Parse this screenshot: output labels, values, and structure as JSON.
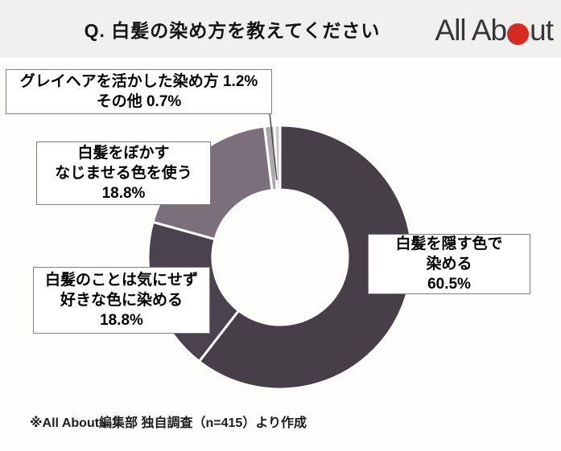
{
  "header": {
    "title": "Q. 白髪の染め方を教えてください",
    "logo": {
      "part1": "All Ab",
      "part2": "ut",
      "dot_color": "#d62a23"
    }
  },
  "chart_data": {
    "type": "pie",
    "subtype": "donut",
    "title": "Q. 白髪の染め方を教えてください",
    "start_angle_deg": 0,
    "direction": "clockwise",
    "inner_radius_ratio": 0.51,
    "divider_color": "#ffffff",
    "segments": [
      {
        "label": "白髪を隠す色で染める",
        "value": 60.5,
        "color": "#473f48"
      },
      {
        "label": "白髪のことは気にせず好きな色に染める",
        "value": 18.8,
        "color": "#4b4250"
      },
      {
        "label": "白髪をぼかす・なじませる色を使う",
        "value": 18.8,
        "color": "#7a6f7b"
      },
      {
        "label": "グレイヘアを活かした染め方",
        "value": 1.2,
        "color": "#aba7ac"
      },
      {
        "label": "その他",
        "value": 0.7,
        "color": "#c9c7ca"
      }
    ]
  },
  "labels": {
    "top_left": {
      "lines": [
        "グレイヘアを活かした染め方 1.2%",
        "その他 0.7%"
      ]
    },
    "mid_left": {
      "lines": [
        "白髪をぼかす",
        "なじませる色を使う",
        "18.8%"
      ]
    },
    "bottom_left": {
      "lines": [
        "白髪のことは気にせず",
        "好きな色に染める",
        "18.8%"
      ]
    },
    "right": {
      "lines": [
        "白髪を隠す色で",
        "染める",
        "60.5%"
      ]
    }
  },
  "footer": {
    "source": "※All About編集部 独自調査（n=415）より作成"
  }
}
